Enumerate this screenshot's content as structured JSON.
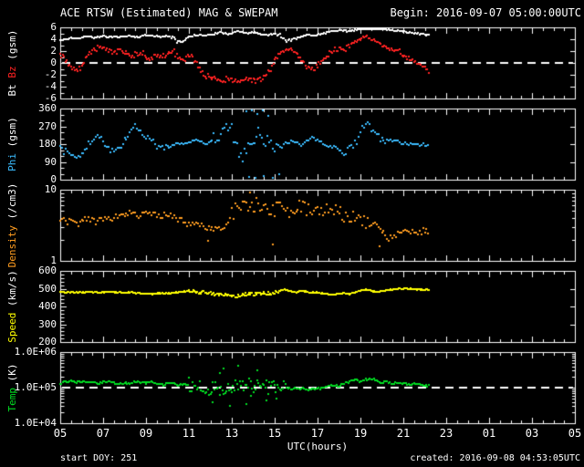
{
  "header": {
    "title": "ACE RTSW (Estimated) MAG & SWEPAM",
    "begin": "Begin: 2016-09-07 05:00:00UTC"
  },
  "footer": {
    "start_doy": "start DOY: 251",
    "created": "created: 2016-09-08 04:53:05UTC"
  },
  "chart_data": {
    "type": "scatter",
    "title": "ACE RTSW (Estimated) MAG & SWEPAM",
    "x_axis": {
      "label": "UTC(hours)",
      "min": 5,
      "max": 29,
      "minor_step": 0.5,
      "tick_hours": [
        5,
        7,
        9,
        11,
        13,
        15,
        17,
        19,
        21,
        23,
        25,
        27,
        29
      ],
      "tick_labels": [
        "05",
        "07",
        "09",
        "11",
        "13",
        "15",
        "17",
        "19",
        "21",
        "23",
        "01",
        "03",
        "05"
      ],
      "start_doy": 251
    },
    "panels": [
      {
        "id": "mag",
        "scale": "linear",
        "ymin": -6,
        "ymax": 6,
        "minor_step": 1,
        "dashed_at": 0,
        "yticks": [
          {
            "v": 6,
            "label": "6"
          },
          {
            "v": 4,
            "label": "4"
          },
          {
            "v": 2,
            "label": "2"
          },
          {
            "v": 0,
            "label": "0"
          },
          {
            "v": -2,
            "label": "-2"
          },
          {
            "v": -4,
            "label": "-4"
          },
          {
            "v": -6,
            "label": "-6"
          }
        ],
        "ylabel_parts": [
          {
            "text": "Bt ",
            "color": "#ffffff"
          },
          {
            "text": "Bz",
            "color": "#ff2222"
          },
          {
            "text": " (gsm)",
            "color": "#ffffff"
          }
        ]
      },
      {
        "id": "phi",
        "scale": "linear",
        "ymin": 0,
        "ymax": 360,
        "minor_step": 30,
        "yticks": [
          {
            "v": 360,
            "label": "360"
          },
          {
            "v": 270,
            "label": "270"
          },
          {
            "v": 180,
            "label": "180"
          },
          {
            "v": 90,
            "label": "90"
          },
          {
            "v": 0,
            "label": "0"
          }
        ],
        "ylabel_parts": [
          {
            "text": "Phi",
            "color": "#3bbcff"
          },
          {
            "text": " (gsm)",
            "color": "#ffffff"
          }
        ]
      },
      {
        "id": "density",
        "scale": "log",
        "ymin": 1,
        "ymax": 10,
        "yticks": [
          {
            "v": 10,
            "label": "10"
          },
          {
            "v": 1,
            "label": "1"
          }
        ],
        "ylabel_parts": [
          {
            "text": "Density",
            "color": "#ff9d20"
          },
          {
            "text": " (/cm3)",
            "color": "#ffffff"
          }
        ]
      },
      {
        "id": "speed",
        "scale": "linear",
        "ymin": 200,
        "ymax": 600,
        "minor_step": 20,
        "yticks": [
          {
            "v": 600,
            "label": "600"
          },
          {
            "v": 500,
            "label": "500"
          },
          {
            "v": 400,
            "label": "400"
          },
          {
            "v": 300,
            "label": "300"
          },
          {
            "v": 200,
            "label": "200"
          }
        ],
        "ylabel_parts": [
          {
            "text": "Speed",
            "color": "#ffff00"
          },
          {
            "text": " (km/s)",
            "color": "#ffffff"
          }
        ]
      },
      {
        "id": "temp",
        "scale": "log",
        "ymin": 10000,
        "ymax": 1000000,
        "dashed_at": 100000,
        "yticks": [
          {
            "v": 1000000,
            "label": "1.0E+06"
          },
          {
            "v": 100000,
            "label": "1.0E+05"
          },
          {
            "v": 10000,
            "label": "1.0E+04"
          }
        ],
        "ylabel_parts": [
          {
            "text": "Temp",
            "color": "#00dd22"
          },
          {
            "text": " (K)",
            "color": "#ffffff"
          }
        ]
      }
    ],
    "series": [
      {
        "name": "Bt",
        "panel": "mag",
        "color": "#ffffff",
        "t0": 5,
        "dt": 0.25,
        "sub": 4,
        "noise": {
          "base": 0.12,
          "windows": [
            [
              10.2,
              11,
              0.3
            ],
            [
              15.2,
              16,
              0.3
            ]
          ]
        },
        "values": [
          3.8,
          4.0,
          4.2,
          4.0,
          4.3,
          4.5,
          4.3,
          4.4,
          4.6,
          4.4,
          4.5,
          4.3,
          4.5,
          4.6,
          4.4,
          4.5,
          4.7,
          4.5,
          4.6,
          4.4,
          4.5,
          4.2,
          3.6,
          3.4,
          4.4,
          4.6,
          4.8,
          4.6,
          4.7,
          5.0,
          5.2,
          4.9,
          5.0,
          5.3,
          5.1,
          4.9,
          5.2,
          5.0,
          4.8,
          4.7,
          4.9,
          4.6,
          3.9,
          3.6,
          4.2,
          4.5,
          4.7,
          4.6,
          4.8,
          5.0,
          5.2,
          5.4,
          5.6,
          5.5,
          5.3,
          5.6,
          5.8,
          6.0,
          5.9,
          5.7,
          5.8,
          5.6,
          5.4,
          5.5,
          5.3,
          5.2,
          5.0,
          4.9,
          4.8,
          4.7
        ]
      },
      {
        "name": "Bz",
        "panel": "mag",
        "color": "#ff2222",
        "t0": 5,
        "dt": 0.25,
        "sub": 4,
        "noise": {
          "base": 0.3,
          "windows": [
            [
              5,
              10.5,
              0.5
            ],
            [
              11,
              15,
              0.45
            ],
            [
              16.5,
              18.6,
              0.45
            ]
          ]
        },
        "values": [
          1.5,
          0.5,
          -0.5,
          -1.5,
          -0.5,
          1.0,
          2.0,
          2.5,
          3.0,
          2.0,
          1.5,
          2.5,
          1.8,
          1.0,
          1.5,
          2.0,
          1.2,
          0.8,
          1.5,
          1.0,
          1.8,
          2.2,
          1.0,
          0.2,
          1.5,
          0.5,
          -1.0,
          -2.0,
          -2.5,
          -2.8,
          -3.0,
          -2.7,
          -2.9,
          -3.2,
          -3.0,
          -2.8,
          -3.1,
          -2.9,
          -2.5,
          -1.5,
          0.5,
          1.5,
          2.2,
          2.5,
          1.8,
          0.5,
          -0.5,
          -1.0,
          -0.5,
          0.5,
          1.5,
          2.0,
          2.5,
          2.2,
          2.8,
          3.5,
          4.2,
          4.5,
          4.0,
          3.5,
          3.0,
          2.5,
          2.0,
          2.4,
          1.2,
          0.8,
          0.3,
          -0.3,
          -0.8,
          -1.5
        ]
      },
      {
        "name": "Phi",
        "panel": "phi",
        "color": "#3bbcff",
        "t0": 5,
        "dt": 0.25,
        "sub": 3,
        "noise": {
          "base": 8,
          "windows": [
            [
              5,
              10,
              16
            ],
            [
              12,
              15,
              35
            ],
            [
              18,
              20.2,
              20
            ]
          ]
        },
        "extra_points": [
          [
            13.7,
            345
          ],
          [
            13.95,
            355
          ],
          [
            14.2,
            332
          ],
          [
            14.45,
            350
          ],
          [
            14.7,
            322
          ],
          [
            13.8,
            15
          ],
          [
            14.1,
            8
          ],
          [
            14.5,
            20
          ],
          [
            14.9,
            10
          ],
          [
            15.2,
            30
          ]
        ],
        "values": [
          160,
          140,
          120,
          110,
          130,
          170,
          200,
          220,
          200,
          160,
          140,
          160,
          200,
          240,
          270,
          250,
          220,
          210,
          170,
          155,
          165,
          180,
          190,
          185,
          190,
          200,
          195,
          185,
          190,
          210,
          240,
          270,
          250,
          150,
          100,
          170,
          200,
          230,
          210,
          190,
          175,
          165,
          180,
          195,
          185,
          170,
          195,
          210,
          200,
          180,
          170,
          165,
          150,
          140,
          160,
          180,
          240,
          290,
          250,
          220,
          205,
          200,
          195,
          190,
          185,
          182,
          180,
          178,
          175,
          173
        ]
      },
      {
        "name": "Density",
        "panel": "density",
        "color": "#ff9d20",
        "t0": 5,
        "dt": 0.25,
        "sub": 3,
        "noise": {
          "base": 0.045,
          "windows": [
            [
              13,
              20,
              0.1
            ]
          ]
        },
        "extra_points": [
          [
            13.85,
            9.2
          ],
          [
            11.9,
            1.9
          ],
          [
            14.9,
            1.7
          ],
          [
            19.9,
            1.6
          ]
        ],
        "values": [
          4.0,
          3.5,
          3.8,
          3.2,
          3.6,
          4.0,
          3.7,
          3.5,
          3.8,
          4.2,
          4.0,
          4.3,
          4.5,
          4.8,
          4.6,
          4.4,
          4.7,
          4.5,
          4.2,
          4.4,
          4.6,
          4.3,
          3.9,
          3.6,
          3.3,
          3.6,
          3.4,
          3.0,
          2.8,
          3.0,
          2.7,
          3.2,
          4.5,
          5.5,
          6.0,
          5.0,
          5.8,
          6.5,
          5.5,
          4.8,
          5.2,
          6.0,
          5.6,
          5.0,
          5.4,
          5.8,
          5.2,
          5.6,
          5.3,
          5.0,
          5.4,
          5.1,
          4.8,
          4.4,
          4.0,
          4.3,
          3.8,
          3.4,
          3.0,
          2.8,
          2.5,
          2.2,
          2.0,
          2.4,
          2.8,
          2.6,
          2.5,
          2.6,
          2.7,
          2.6
        ]
      },
      {
        "name": "Speed",
        "panel": "speed",
        "color": "#ffff00",
        "t0": 5,
        "dt": 0.25,
        "sub": 5,
        "noise": {
          "base": 2.5,
          "windows": [
            [
              11,
              15.5,
              9
            ]
          ]
        },
        "values": [
          480,
          478,
          482,
          480,
          479,
          481,
          480,
          478,
          480,
          482,
          480,
          479,
          478,
          480,
          476,
          474,
          472,
          470,
          473,
          475,
          474,
          476,
          480,
          485,
          488,
          484,
          480,
          478,
          475,
          470,
          465,
          468,
          462,
          458,
          465,
          470,
          468,
          472,
          475,
          470,
          478,
          490,
          495,
          485,
          480,
          488,
          482,
          478,
          480,
          472,
          470,
          468,
          472,
          475,
          470,
          478,
          490,
          495,
          488,
          480,
          485,
          492,
          495,
          498,
          500,
          498,
          497,
          496,
          495,
          492
        ]
      },
      {
        "name": "Temp",
        "panel": "temp",
        "color": "#00dd22",
        "t0": 5,
        "dt": 0.25,
        "sub": 4,
        "noise": {
          "base": 0.03,
          "windows": [
            [
              11,
              15.5,
              0.2
            ]
          ]
        },
        "extra_points": [
          [
            12.1,
            40000
          ],
          [
            12.45,
            250000
          ],
          [
            12.6,
            350000
          ],
          [
            12.9,
            30000
          ],
          [
            13.3,
            420000
          ],
          [
            13.7,
            35000
          ],
          [
            14.2,
            300000
          ],
          [
            14.6,
            45000
          ],
          [
            15.1,
            50000
          ],
          [
            13.9,
            60000
          ]
        ],
        "values": [
          130000,
          150000,
          160000,
          140000,
          150000,
          140000,
          150000,
          130000,
          140000,
          150000,
          140000,
          130000,
          140000,
          130000,
          150000,
          140000,
          130000,
          140000,
          130000,
          120000,
          130000,
          140000,
          120000,
          130000,
          120000,
          100000,
          110000,
          100000,
          90000,
          100000,
          95000,
          100000,
          120000,
          110000,
          130000,
          120000,
          110000,
          130000,
          120000,
          100000,
          110000,
          120000,
          100000,
          90000,
          100000,
          95000,
          85000,
          90000,
          95000,
          100000,
          110000,
          120000,
          110000,
          130000,
          150000,
          160000,
          150000,
          170000,
          180000,
          160000,
          140000,
          150000,
          130000,
          140000,
          130000,
          120000,
          130000,
          120000,
          110000,
          110000
        ]
      }
    ]
  }
}
